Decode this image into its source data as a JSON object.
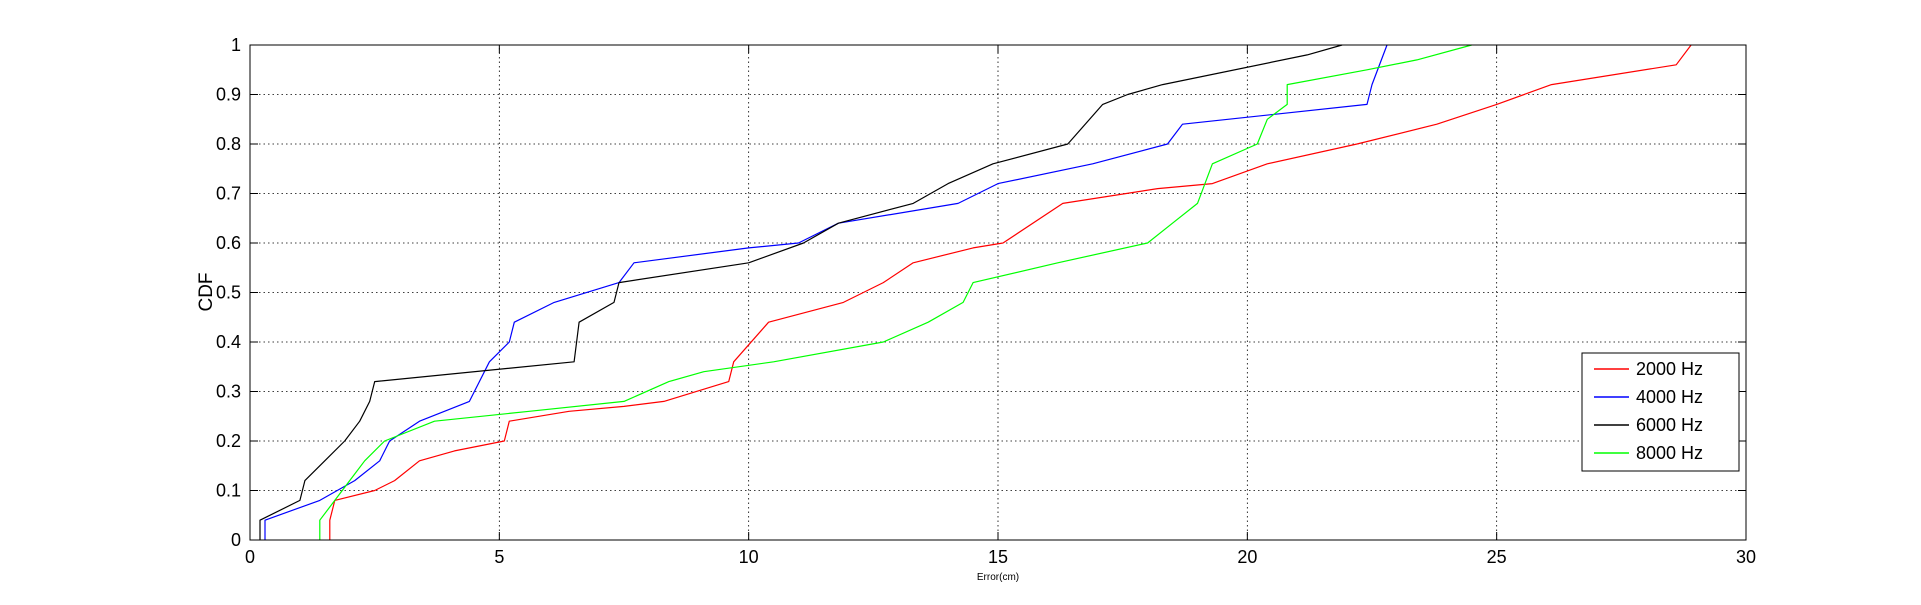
{
  "chart_data": {
    "type": "line",
    "title": "",
    "xlabel": "Error(cm)",
    "ylabel": "CDF",
    "xlim": [
      0,
      30
    ],
    "ylim": [
      0,
      1
    ],
    "xticks": [
      0,
      5,
      10,
      15,
      20,
      25,
      30
    ],
    "yticks": [
      0,
      0.1,
      0.2,
      0.3,
      0.4,
      0.5,
      0.6,
      0.7,
      0.8,
      0.9,
      1
    ],
    "xtick_labels": [
      "0",
      "5",
      "10",
      "15",
      "20",
      "25",
      "30"
    ],
    "ytick_labels": [
      "0",
      "0.1",
      "0.2",
      "0.3",
      "0.4",
      "0.5",
      "0.6",
      "0.7",
      "0.8",
      "0.9",
      "1"
    ],
    "grid": true,
    "legend_position": "bottom-right",
    "series": [
      {
        "name": "2000 Hz",
        "color": "#ff0000",
        "points": [
          [
            1.6,
            0
          ],
          [
            1.6,
            0.04
          ],
          [
            1.7,
            0.08
          ],
          [
            2.5,
            0.1
          ],
          [
            2.9,
            0.12
          ],
          [
            3.4,
            0.16
          ],
          [
            4.1,
            0.18
          ],
          [
            5.1,
            0.2
          ],
          [
            5.2,
            0.24
          ],
          [
            6.4,
            0.26
          ],
          [
            7.5,
            0.27
          ],
          [
            8.3,
            0.28
          ],
          [
            9.6,
            0.32
          ],
          [
            9.7,
            0.36
          ],
          [
            10.4,
            0.44
          ],
          [
            11.9,
            0.48
          ],
          [
            12.7,
            0.52
          ],
          [
            13.3,
            0.56
          ],
          [
            14.5,
            0.59
          ],
          [
            15.1,
            0.6
          ],
          [
            16.3,
            0.68
          ],
          [
            18.2,
            0.71
          ],
          [
            19.3,
            0.72
          ],
          [
            20.4,
            0.76
          ],
          [
            22.2,
            0.8
          ],
          [
            23.8,
            0.84
          ],
          [
            25.0,
            0.88
          ],
          [
            26.1,
            0.92
          ],
          [
            28.6,
            0.96
          ],
          [
            28.9,
            1.0
          ]
        ]
      },
      {
        "name": "4000 Hz",
        "color": "#0000ff",
        "points": [
          [
            0.3,
            0
          ],
          [
            0.3,
            0.04
          ],
          [
            1.4,
            0.08
          ],
          [
            2.1,
            0.12
          ],
          [
            2.6,
            0.16
          ],
          [
            2.8,
            0.2
          ],
          [
            3.4,
            0.24
          ],
          [
            4.4,
            0.28
          ],
          [
            4.8,
            0.36
          ],
          [
            5.2,
            0.4
          ],
          [
            5.3,
            0.44
          ],
          [
            6.1,
            0.48
          ],
          [
            7.4,
            0.52
          ],
          [
            7.7,
            0.56
          ],
          [
            10.0,
            0.59
          ],
          [
            11.0,
            0.6
          ],
          [
            11.8,
            0.64
          ],
          [
            14.2,
            0.68
          ],
          [
            15.0,
            0.72
          ],
          [
            16.9,
            0.76
          ],
          [
            18.4,
            0.8
          ],
          [
            18.7,
            0.84
          ],
          [
            22.4,
            0.88
          ],
          [
            22.5,
            0.92
          ],
          [
            22.8,
            1.0
          ]
        ]
      },
      {
        "name": "6000 Hz",
        "color": "#000000",
        "points": [
          [
            0.2,
            0
          ],
          [
            0.2,
            0.04
          ],
          [
            1.0,
            0.08
          ],
          [
            1.1,
            0.12
          ],
          [
            1.5,
            0.16
          ],
          [
            1.9,
            0.2
          ],
          [
            2.2,
            0.24
          ],
          [
            2.4,
            0.28
          ],
          [
            2.5,
            0.32
          ],
          [
            6.5,
            0.36
          ],
          [
            6.6,
            0.44
          ],
          [
            7.3,
            0.48
          ],
          [
            7.4,
            0.52
          ],
          [
            10.0,
            0.56
          ],
          [
            11.1,
            0.6
          ],
          [
            11.8,
            0.64
          ],
          [
            13.3,
            0.68
          ],
          [
            14.0,
            0.72
          ],
          [
            14.9,
            0.76
          ],
          [
            16.4,
            0.8
          ],
          [
            17.1,
            0.88
          ],
          [
            17.6,
            0.9
          ],
          [
            18.3,
            0.92
          ],
          [
            21.2,
            0.98
          ],
          [
            21.9,
            1.0
          ]
        ]
      },
      {
        "name": "8000 Hz",
        "color": "#00ff00",
        "points": [
          [
            1.4,
            0
          ],
          [
            1.4,
            0.04
          ],
          [
            1.7,
            0.08
          ],
          [
            2.0,
            0.12
          ],
          [
            2.3,
            0.16
          ],
          [
            2.7,
            0.2
          ],
          [
            3.7,
            0.24
          ],
          [
            5.6,
            0.26
          ],
          [
            7.5,
            0.28
          ],
          [
            8.4,
            0.32
          ],
          [
            9.1,
            0.34
          ],
          [
            10.5,
            0.36
          ],
          [
            12.7,
            0.4
          ],
          [
            13.6,
            0.44
          ],
          [
            14.3,
            0.48
          ],
          [
            14.5,
            0.52
          ],
          [
            16.2,
            0.56
          ],
          [
            18.0,
            0.6
          ],
          [
            18.5,
            0.64
          ],
          [
            19.0,
            0.68
          ],
          [
            19.3,
            0.76
          ],
          [
            20.2,
            0.8
          ],
          [
            20.4,
            0.85
          ],
          [
            20.8,
            0.88
          ],
          [
            20.8,
            0.92
          ],
          [
            22.4,
            0.95
          ],
          [
            23.4,
            0.97
          ],
          [
            24.5,
            1.0
          ]
        ]
      }
    ]
  }
}
